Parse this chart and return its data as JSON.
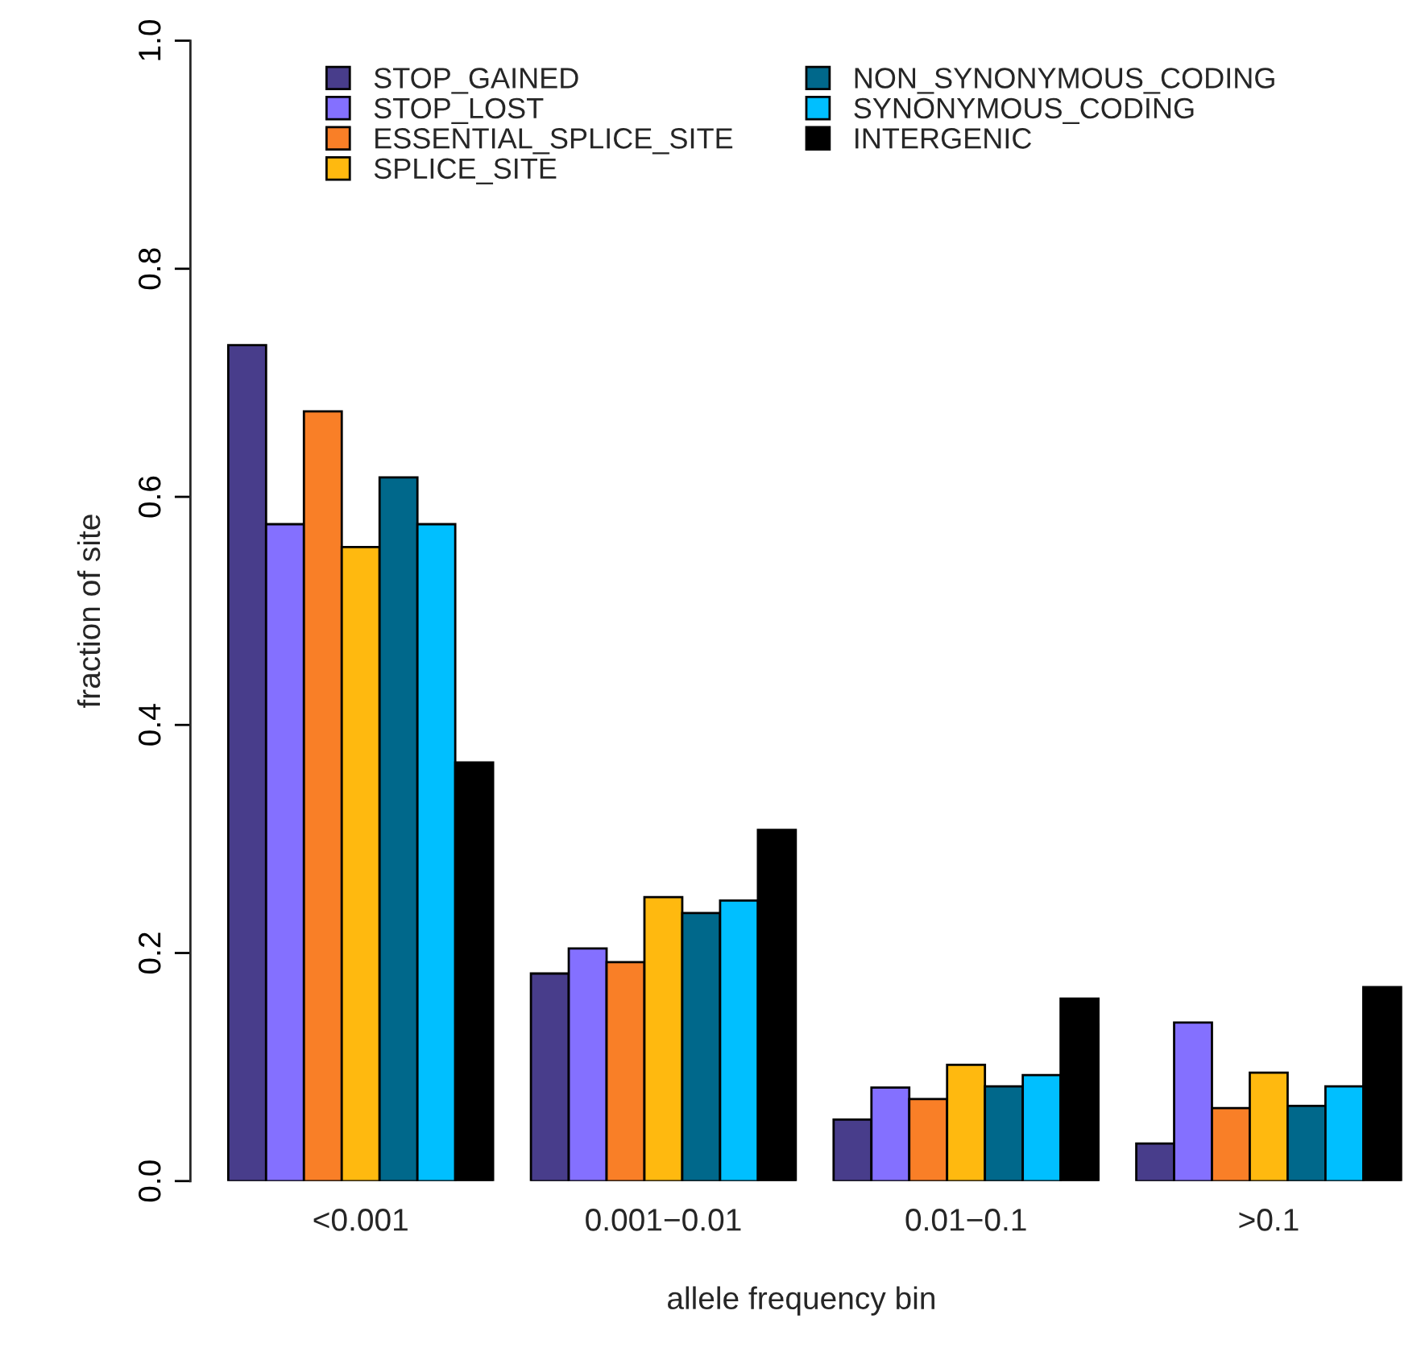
{
  "chart_data": {
    "type": "bar",
    "xlabel": "allele frequency bin",
    "ylabel": "fraction of site",
    "categories": [
      "<0.001",
      "0.001−0.01",
      "0.01−0.1",
      ">0.1"
    ],
    "series": [
      {
        "name": "STOP_GAINED",
        "color": "#483d8b",
        "values": [
          0.733,
          0.182,
          0.054,
          0.033
        ]
      },
      {
        "name": "STOP_LOST",
        "color": "#8470ff",
        "values": [
          0.576,
          0.204,
          0.082,
          0.139
        ]
      },
      {
        "name": "ESSENTIAL_SPLICE_SITE",
        "color": "#f97f27",
        "values": [
          0.675,
          0.192,
          0.072,
          0.064
        ]
      },
      {
        "name": "SPLICE_SITE",
        "color": "#ffb90f",
        "values": [
          0.556,
          0.249,
          0.102,
          0.095
        ]
      },
      {
        "name": "NON_SYNONYMOUS_CODING",
        "color": "#00688b",
        "values": [
          0.617,
          0.235,
          0.083,
          0.066
        ]
      },
      {
        "name": "SYNONYMOUS_CODING",
        "color": "#00bfff",
        "values": [
          0.576,
          0.246,
          0.093,
          0.083
        ]
      },
      {
        "name": "INTERGENIC",
        "color": "#000000",
        "values": [
          0.367,
          0.308,
          0.16,
          0.17
        ]
      }
    ],
    "ylim": [
      0,
      1
    ],
    "yticks": [
      {
        "value": 0,
        "label": "0.0"
      },
      0.2,
      0.4,
      0.6,
      0.8,
      {
        "value": 1,
        "label": "1.0"
      }
    ],
    "grid": false,
    "legend": "top"
  }
}
